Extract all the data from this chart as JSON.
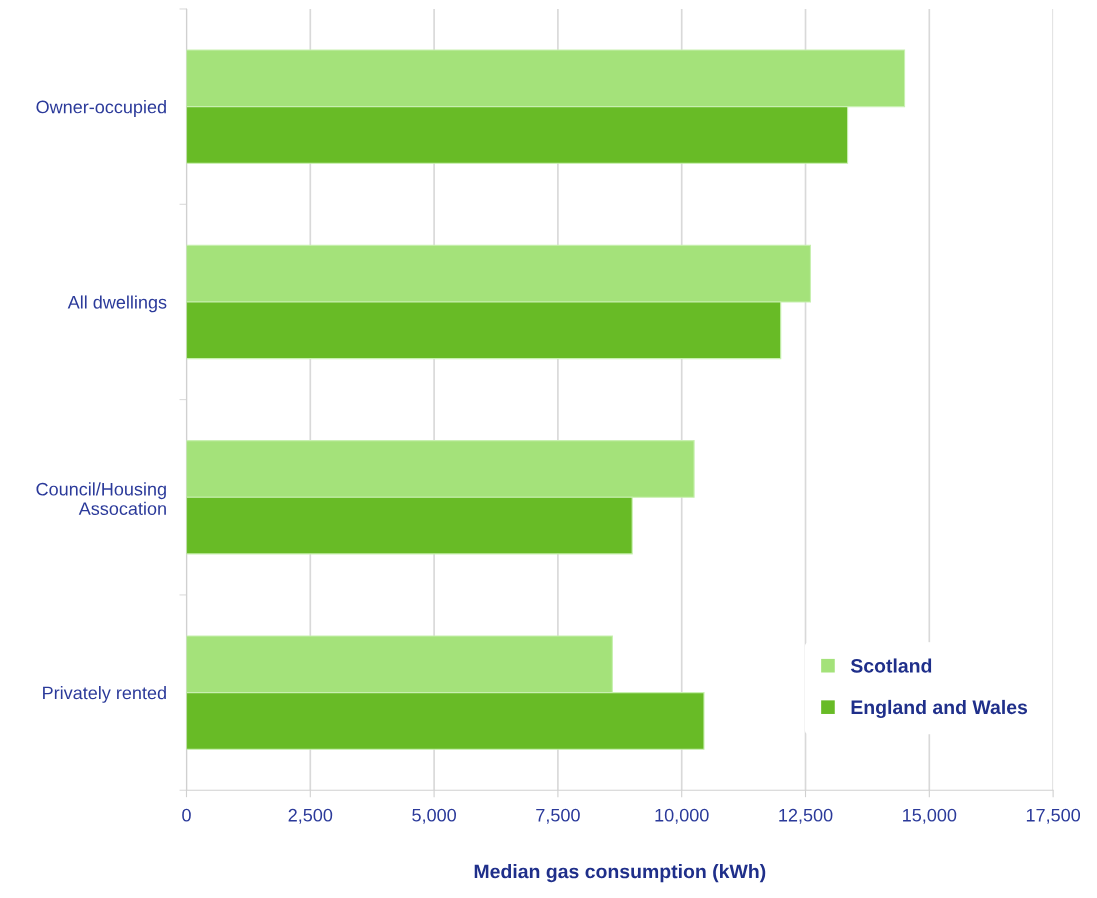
{
  "chart_data": {
    "type": "bar",
    "orientation": "horizontal",
    "xlabel": "Median gas consumption (kWh)",
    "categories": [
      "Owner-occupied",
      "All dwellings",
      "Council/Housing\nAssocation",
      "Privately rented"
    ],
    "series": [
      {
        "name": "Scotland",
        "color": "#a4e27a",
        "values": [
          14500,
          12600,
          10250,
          8600
        ]
      },
      {
        "name": "England and Wales",
        "color": "#68bb26",
        "values": [
          13350,
          12000,
          9000,
          10450
        ]
      }
    ],
    "xlim": [
      0,
      17500
    ],
    "xticks": [
      0,
      {
        "value": 2500,
        "label": "2,500"
      },
      {
        "value": 5000,
        "label": "5,000"
      },
      {
        "value": 7500,
        "label": "7,500"
      },
      {
        "value": 10000,
        "label": "10,000"
      },
      {
        "value": 12500,
        "label": "12,500"
      },
      {
        "value": 15000,
        "label": "15,000"
      },
      {
        "value": 17500,
        "label": "17,500"
      }
    ],
    "grid": "x",
    "legend": "bottom right"
  }
}
